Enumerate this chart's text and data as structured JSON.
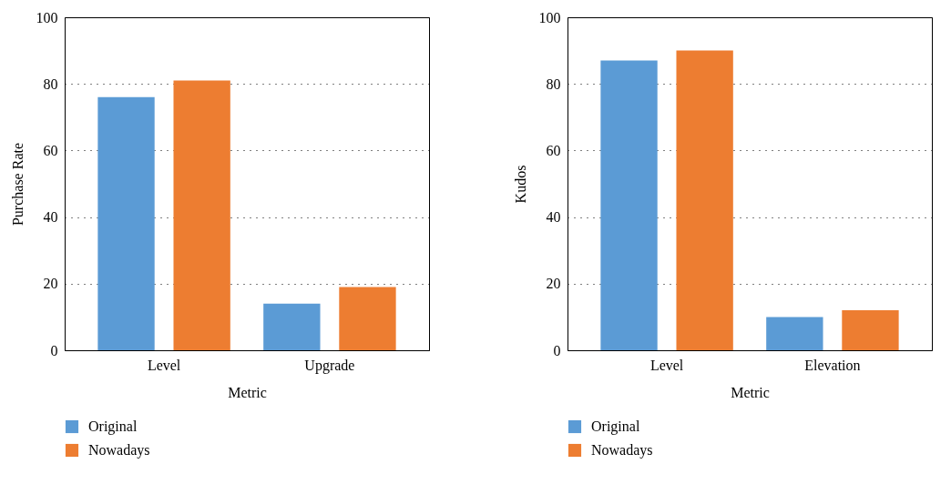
{
  "chart_data": [
    {
      "type": "bar",
      "xlabel": "Metric",
      "ylabel": "Purchase Rate",
      "categories": [
        "Level",
        "Upgrade"
      ],
      "series": [
        {
          "name": "Original",
          "color": "#5b9bd5",
          "values": [
            76,
            14
          ]
        },
        {
          "name": "Nowadays",
          "color": "#ed7d31",
          "values": [
            81,
            19
          ]
        }
      ],
      "ylim": [
        0,
        100
      ],
      "yticks": [
        0,
        20,
        40,
        60,
        80,
        100
      ],
      "grid": "y",
      "legend": "bottom"
    },
    {
      "type": "bar",
      "xlabel": "Metric",
      "ylabel": "Kudos",
      "categories": [
        "Level",
        "Elevation"
      ],
      "series": [
        {
          "name": "Original",
          "color": "#5b9bd5",
          "values": [
            87,
            10
          ]
        },
        {
          "name": "Nowadays",
          "color": "#ed7d31",
          "values": [
            90,
            12
          ]
        }
      ],
      "ylim": [
        0,
        100
      ],
      "yticks": [
        0,
        20,
        40,
        60,
        80,
        100
      ],
      "grid": "y",
      "legend": "bottom"
    }
  ]
}
